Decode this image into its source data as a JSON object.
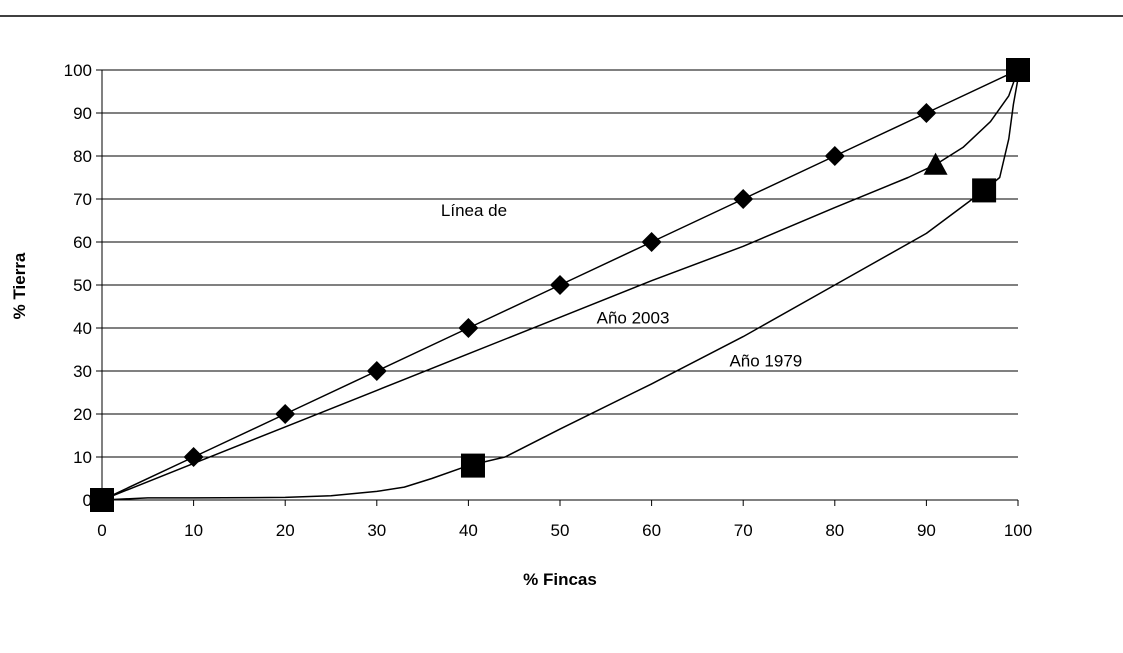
{
  "chart_data": {
    "type": "line",
    "xlabel": "% Fincas",
    "ylabel": "% Tierra",
    "xlim": [
      0,
      100
    ],
    "ylim": [
      0,
      100
    ],
    "x_ticks": [
      0,
      10,
      20,
      30,
      40,
      50,
      60,
      70,
      80,
      90,
      100
    ],
    "y_ticks": [
      0,
      10,
      20,
      30,
      40,
      50,
      60,
      70,
      80,
      90,
      100
    ],
    "grid": "horizontal",
    "series": [
      {
        "name": "Línea de",
        "marker": "diamond",
        "x": [
          0,
          10,
          20,
          30,
          40,
          50,
          60,
          70,
          80,
          90,
          100
        ],
        "y": [
          0,
          10,
          20,
          30,
          40,
          50,
          60,
          70,
          80,
          90,
          100
        ],
        "marker_x": [
          0,
          10,
          20,
          30,
          40,
          50,
          60,
          70,
          80,
          90,
          100
        ],
        "marker_y": [
          0,
          10,
          20,
          30,
          40,
          50,
          60,
          70,
          80,
          90,
          100
        ]
      },
      {
        "name": "Año 2003",
        "marker": "triangle",
        "x": [
          0,
          10,
          20,
          30,
          40,
          50,
          60,
          70,
          80,
          88,
          91,
          94,
          97,
          99,
          100
        ],
        "y": [
          0,
          8.5,
          17,
          25.5,
          34,
          42.5,
          51,
          59,
          68,
          75,
          78,
          82,
          88,
          94,
          100
        ],
        "marker_x": [
          91
        ],
        "marker_y": [
          78
        ]
      },
      {
        "name": "Año 1979",
        "marker": "square",
        "x": [
          0,
          5,
          10,
          20,
          25,
          30,
          33,
          36,
          40,
          44,
          50,
          60,
          70,
          80,
          90,
          96.3,
          98,
          99,
          99.5,
          100,
          100
        ],
        "y": [
          0,
          0.5,
          0.5,
          0.6,
          1,
          2,
          3,
          5,
          8,
          10,
          16.5,
          27,
          38,
          50,
          62,
          72,
          75,
          84,
          92,
          98,
          100
        ],
        "marker_x": [
          0,
          40.5,
          96.3,
          100
        ],
        "marker_y": [
          0,
          8,
          72,
          100
        ]
      }
    ],
    "annotations": [
      {
        "text": "Línea de",
        "x": 37,
        "y": 66
      },
      {
        "text": "Año 2003",
        "x": 54,
        "y": 41
      },
      {
        "text": "Año 1979",
        "x": 68.5,
        "y": 31
      }
    ]
  }
}
